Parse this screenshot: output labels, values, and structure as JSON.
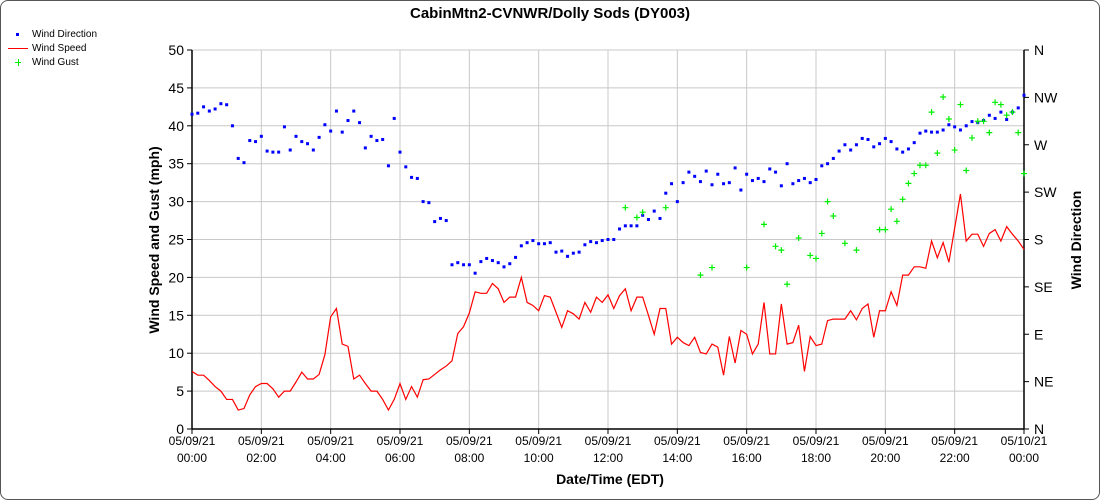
{
  "chart_data": {
    "type": "line",
    "title": "CabinMtn2-CVNWR/Dolly Sods (DY003)",
    "xlabel": "Date/Time (EDT)",
    "ylabel": "Wind Speed and Gust (mph)",
    "y2label": "Wind Direction",
    "ylim": [
      0,
      50
    ],
    "y2lim": [
      0,
      360
    ],
    "yticks": [
      "0",
      "5",
      "10",
      "15",
      "20",
      "25",
      "30",
      "35",
      "40",
      "45",
      "50"
    ],
    "y2ticks": [
      "N",
      "NE",
      "E",
      "SE",
      "S",
      "SW",
      "W",
      "NW",
      "N"
    ],
    "x_unit": "minutes since 05/09/21 00:00",
    "interval_minutes": 10,
    "xlim": [
      0,
      1440
    ],
    "xticks": [
      {
        "date": "05/09/21",
        "time": "00:00"
      },
      {
        "date": "05/09/21",
        "time": "02:00"
      },
      {
        "date": "05/09/21",
        "time": "04:00"
      },
      {
        "date": "05/09/21",
        "time": "06:00"
      },
      {
        "date": "05/09/21",
        "time": "08:00"
      },
      {
        "date": "05/09/21",
        "time": "10:00"
      },
      {
        "date": "05/09/21",
        "time": "12:00"
      },
      {
        "date": "05/09/21",
        "time": "14:00"
      },
      {
        "date": "05/09/21",
        "time": "16:00"
      },
      {
        "date": "05/09/21",
        "time": "18:00"
      },
      {
        "date": "05/09/21",
        "time": "20:00"
      },
      {
        "date": "05/09/21",
        "time": "22:00"
      },
      {
        "date": "05/10/21",
        "time": "00:00"
      }
    ],
    "grid": true,
    "legend_position": "top-left",
    "colors": {
      "direction": "#0000ff",
      "speed": "#ff0000",
      "gust": "#00ee00",
      "grid": "#c8c8c8"
    },
    "series": [
      {
        "name": "Wind Direction",
        "kind": "scatter",
        "axis": "right",
        "values": [
          299,
          300,
          306,
          302,
          304,
          309,
          308,
          288,
          257,
          253,
          274,
          273,
          278,
          264,
          263,
          263,
          287,
          265,
          278,
          273,
          271,
          265,
          277,
          289,
          283,
          302,
          282,
          293,
          302,
          291,
          267,
          278,
          274,
          275,
          250,
          295,
          263,
          249,
          239,
          238,
          216,
          215,
          197,
          200,
          198,
          156,
          158,
          156,
          156,
          148,
          159,
          162,
          160,
          158,
          154,
          157,
          163,
          174,
          177,
          179,
          176,
          176,
          177,
          168,
          169,
          164,
          167,
          168,
          175,
          178,
          177,
          179,
          180,
          180,
          190,
          193,
          193,
          193,
          203,
          199,
          207,
          200,
          224,
          233,
          216,
          234,
          244,
          240,
          235,
          245,
          232,
          242,
          233,
          234,
          248,
          227,
          242,
          236,
          238,
          235,
          247,
          244,
          231,
          252,
          233,
          236,
          238,
          234,
          237,
          250,
          252,
          257,
          264,
          270,
          265,
          270,
          276,
          275,
          268,
          271,
          276,
          273,
          266,
          263,
          266,
          272,
          281,
          283,
          282,
          282,
          284,
          289,
          287,
          284,
          288,
          292,
          291,
          293,
          298,
          295,
          301,
          294,
          301,
          305,
          317
        ]
      },
      {
        "name": "Wind Speed",
        "kind": "line",
        "axis": "left",
        "values": [
          7.6,
          7.1,
          7.1,
          6.4,
          5.6,
          5.0,
          3.9,
          3.9,
          2.5,
          2.7,
          4.5,
          5.6,
          6.0,
          6.0,
          5.3,
          4.2,
          5.0,
          5.0,
          6.2,
          7.5,
          6.6,
          6.6,
          7.2,
          9.8,
          14.8,
          15.9,
          11.2,
          10.9,
          6.6,
          7.1,
          6.0,
          5.0,
          5.0,
          3.9,
          2.5,
          3.9,
          6.0,
          3.9,
          5.6,
          4.2,
          6.5,
          6.6,
          7.2,
          7.8,
          8.3,
          9.0,
          12.6,
          13.5,
          15.3,
          18.1,
          17.9,
          17.9,
          19.2,
          18.5,
          16.7,
          17.4,
          17.4,
          20.0,
          16.7,
          16.3,
          15.6,
          17.6,
          17.4,
          15.4,
          13.4,
          15.6,
          15.2,
          14.5,
          16.7,
          15.4,
          17.4,
          16.7,
          17.7,
          15.9,
          17.6,
          18.5,
          15.6,
          17.4,
          17.4,
          15.0,
          12.5,
          15.9,
          15.9,
          11.2,
          12.1,
          11.4,
          11.0,
          12.1,
          10.1,
          9.9,
          11.2,
          10.8,
          7.1,
          12.2,
          8.7,
          13.0,
          12.5,
          9.9,
          11.2,
          16.7,
          9.9,
          9.9,
          16.5,
          11.2,
          11.4,
          13.7,
          7.6,
          12.2,
          11.0,
          11.2,
          14.3,
          14.5,
          14.5,
          14.5,
          15.6,
          14.4,
          15.9,
          16.5,
          12.1,
          15.6,
          15.6,
          18.1,
          16.3,
          20.3,
          20.3,
          21.4,
          21.4,
          21.2,
          24.8,
          22.6,
          24.6,
          22.0,
          26.5,
          31.0,
          24.8,
          25.7,
          25.7,
          24.1,
          25.8,
          26.3,
          24.8,
          26.7,
          25.7,
          24.8,
          23.7
        ]
      },
      {
        "name": "Wind Gust",
        "kind": "scatter",
        "axis": "left",
        "points": [
          [
            750,
            29.2
          ],
          [
            770,
            27.9
          ],
          [
            780,
            28.6
          ],
          [
            820,
            29.2
          ],
          [
            880,
            20.3
          ],
          [
            900,
            21.3
          ],
          [
            960,
            21.3
          ],
          [
            990,
            27.0
          ],
          [
            1010,
            24.1
          ],
          [
            1020,
            23.6
          ],
          [
            1030,
            19.1
          ],
          [
            1050,
            25.2
          ],
          [
            1070,
            22.9
          ],
          [
            1080,
            22.5
          ],
          [
            1090,
            25.8
          ],
          [
            1100,
            30.0
          ],
          [
            1110,
            28.1
          ],
          [
            1130,
            24.5
          ],
          [
            1150,
            23.6
          ],
          [
            1190,
            26.3
          ],
          [
            1200,
            26.3
          ],
          [
            1210,
            29.0
          ],
          [
            1220,
            27.4
          ],
          [
            1230,
            30.3
          ],
          [
            1240,
            32.4
          ],
          [
            1250,
            33.7
          ],
          [
            1260,
            34.8
          ],
          [
            1270,
            34.8
          ],
          [
            1280,
            41.8
          ],
          [
            1290,
            36.4
          ],
          [
            1300,
            43.8
          ],
          [
            1310,
            40.9
          ],
          [
            1320,
            36.8
          ],
          [
            1330,
            42.8
          ],
          [
            1340,
            34.1
          ],
          [
            1350,
            38.4
          ],
          [
            1360,
            40.6
          ],
          [
            1370,
            40.6
          ],
          [
            1380,
            39.1
          ],
          [
            1390,
            43.1
          ],
          [
            1400,
            42.8
          ],
          [
            1410,
            41.4
          ],
          [
            1420,
            41.8
          ],
          [
            1430,
            39.1
          ],
          [
            1440,
            33.7
          ]
        ]
      }
    ]
  }
}
